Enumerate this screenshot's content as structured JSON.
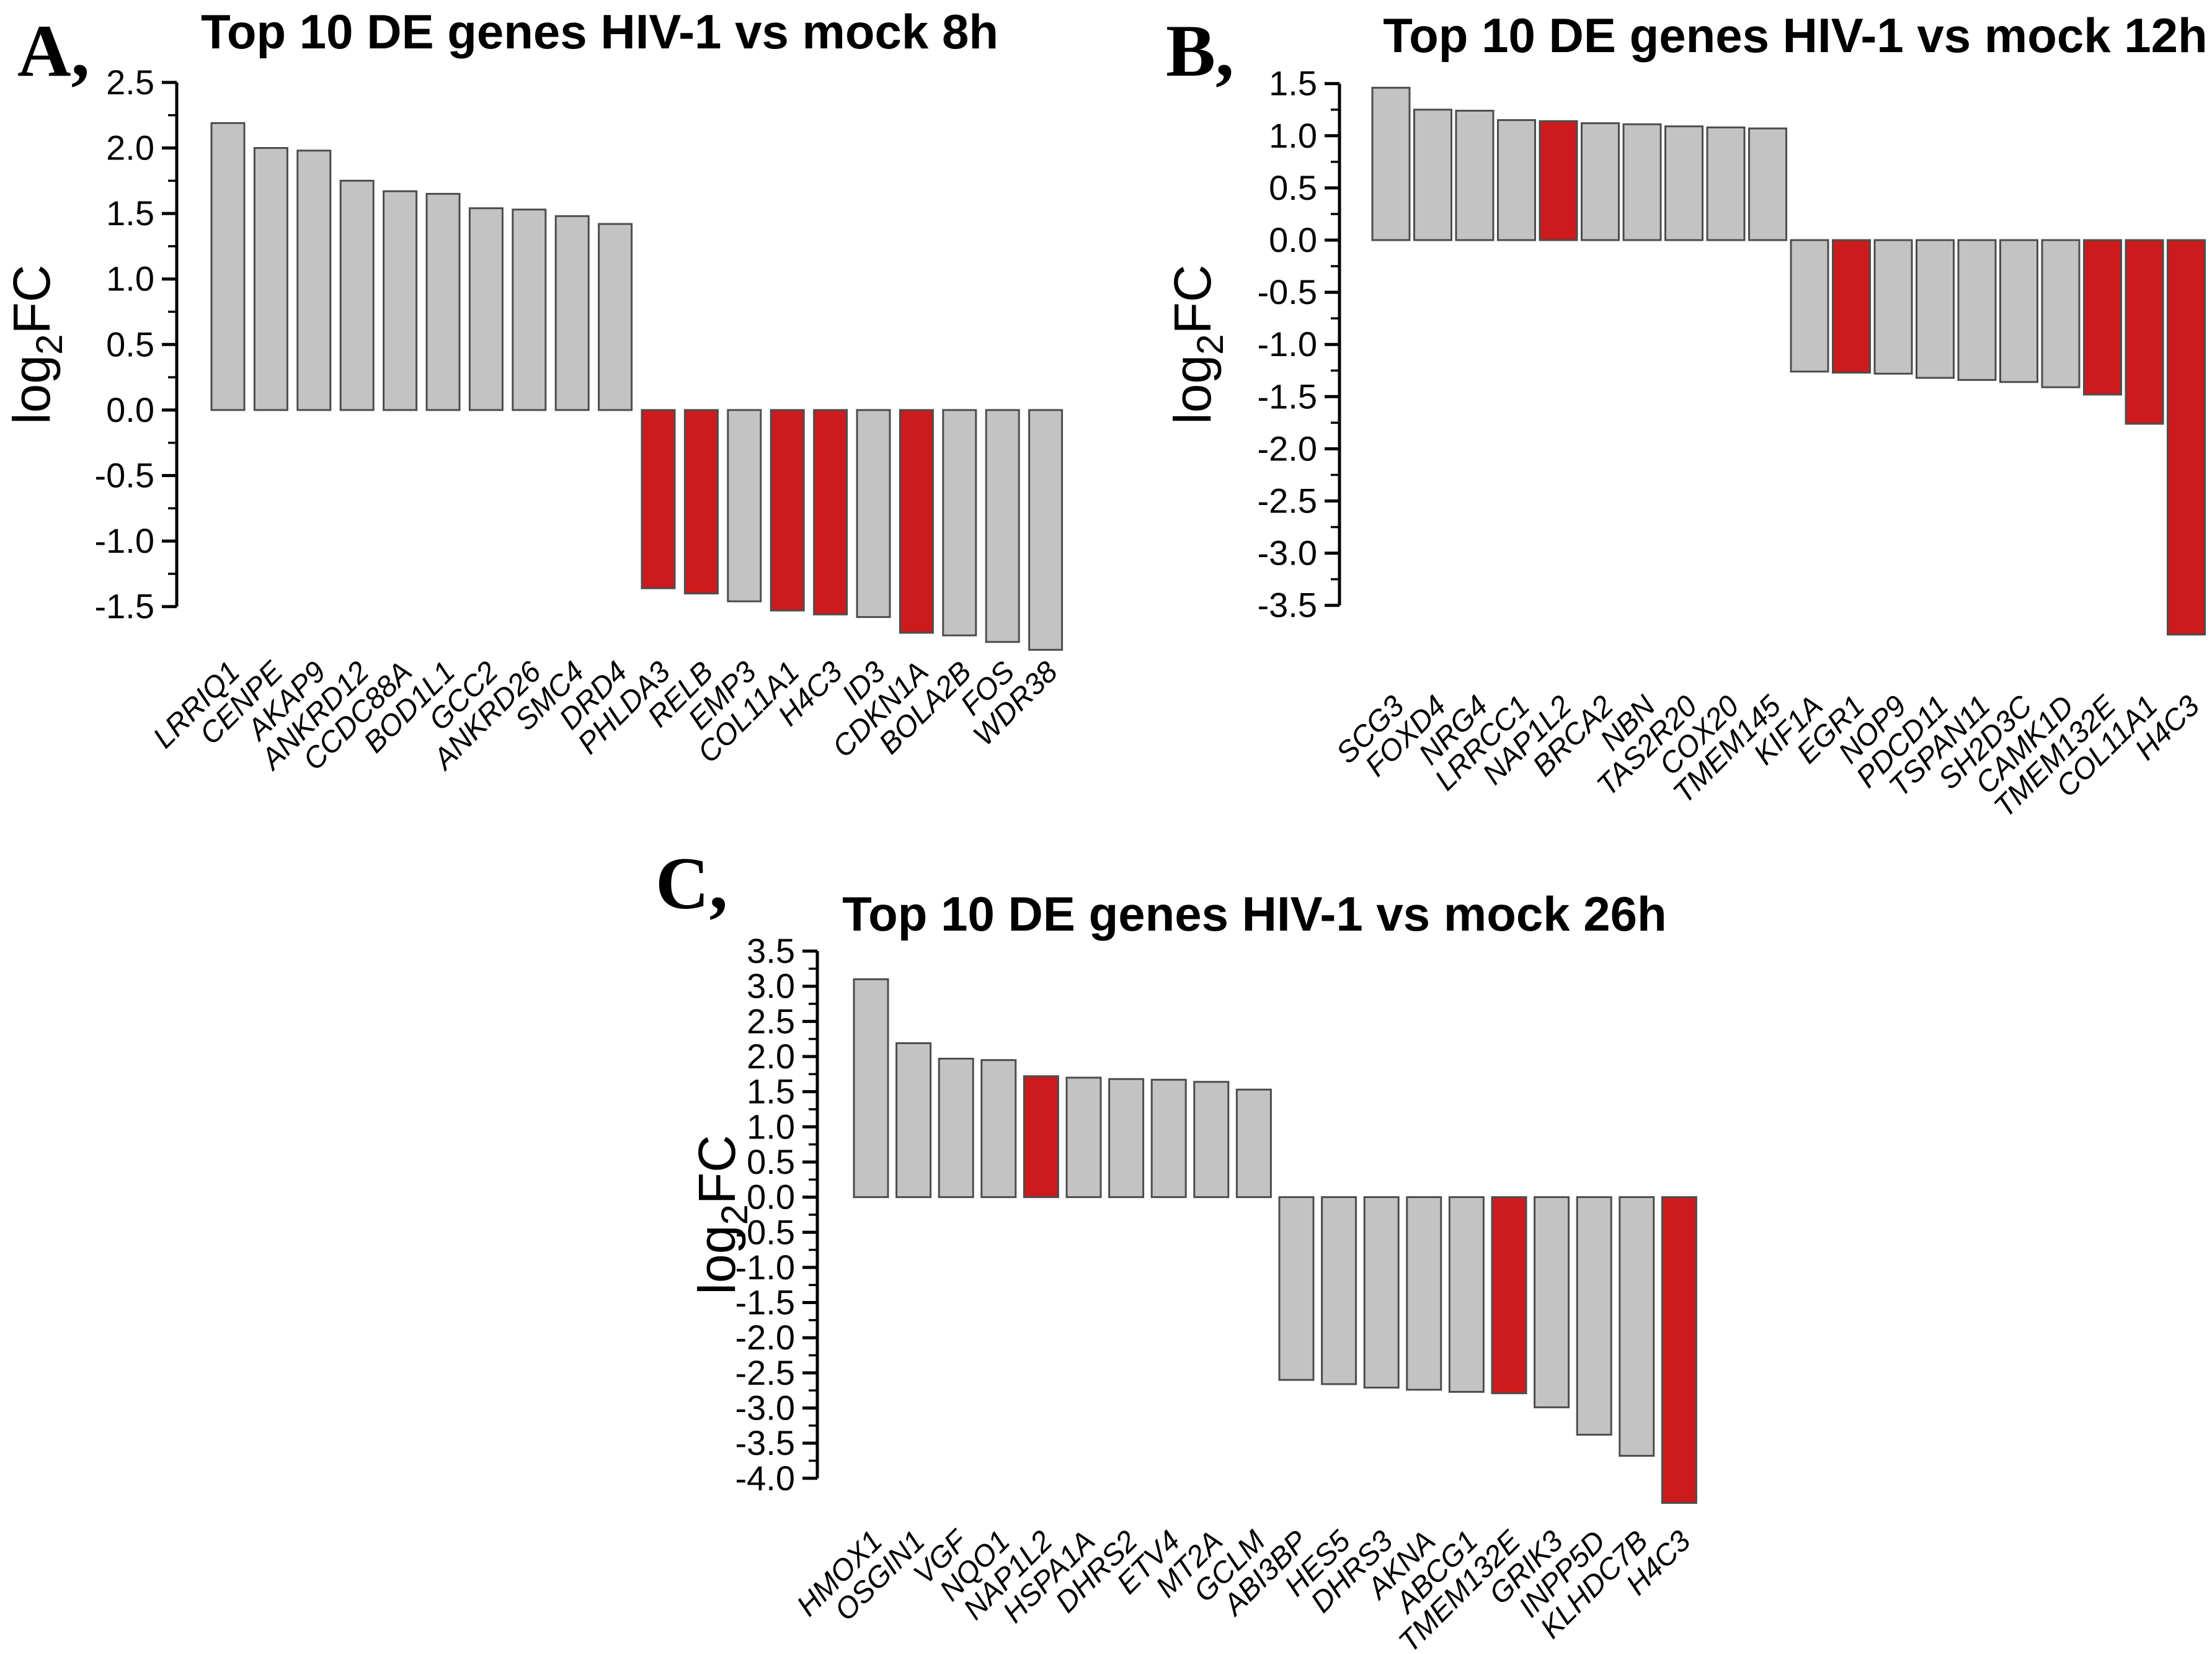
{
  "figure": {
    "background": "#ffffff",
    "bar_gray": "#c3c3c3",
    "bar_red": "#cd1a1c",
    "bar_outline": "#4d4d4d",
    "axis_color": "#000000",
    "text_color": "#000000"
  },
  "chart_data": [
    {
      "type": "bar",
      "panel_label": "A,",
      "title": "Top 10 DE genes HIV-1 vs mock 8h",
      "ylabel": "log2FC",
      "ylabel_parts": {
        "prefix": "log",
        "subscript": "2",
        "suffix": "FC"
      },
      "ylim": [
        -1.5,
        2.5
      ],
      "ytick_step": 0.5,
      "grid": false,
      "legend_position": "none",
      "categories": [
        "LRRIQ1",
        "CENPE",
        "AKAP9",
        "ANKRD12",
        "CCDC88A",
        "BOD1L1",
        "GCC2",
        "ANKRD26",
        "SMC4",
        "DRD4",
        "PHLDA3",
        "RELB",
        "EMP3",
        "COL11A1",
        "H4C3",
        "ID3",
        "CDKN1A",
        "BOLA2B",
        "FOS",
        "WDR38"
      ],
      "values": [
        2.19,
        2.0,
        1.98,
        1.75,
        1.67,
        1.65,
        1.54,
        1.53,
        1.48,
        1.42,
        -1.36,
        -1.4,
        -1.46,
        -1.53,
        -1.56,
        -1.58,
        -1.7,
        -1.72,
        -1.77,
        -1.83
      ],
      "colors": [
        "gray",
        "gray",
        "gray",
        "gray",
        "gray",
        "gray",
        "gray",
        "gray",
        "gray",
        "gray",
        "red",
        "red",
        "gray",
        "red",
        "red",
        "gray",
        "red",
        "gray",
        "gray",
        "gray"
      ]
    },
    {
      "type": "bar",
      "panel_label": "B,",
      "title": "Top 10 DE genes HIV-1 vs mock 12h",
      "ylabel": "log2FC",
      "ylabel_parts": {
        "prefix": "log",
        "subscript": "2",
        "suffix": "FC"
      },
      "ylim": [
        -3.5,
        1.5
      ],
      "ytick_step": 0.5,
      "grid": false,
      "legend_position": "none",
      "categories": [
        "SCG3",
        "FOXD4",
        "NRG4",
        "LRRCC1",
        "NAP1L2",
        "BRCA2",
        "NBN",
        "TAS2R20",
        "COX20",
        "TMEM145",
        "KIF1A",
        "EGR1",
        "NOP9",
        "PDCD11",
        "TSPAN11",
        "SH2D3C",
        "CAMK1D",
        "TMEM132E",
        "COL11A1",
        "H4C3"
      ],
      "values": [
        1.46,
        1.25,
        1.24,
        1.15,
        1.14,
        1.12,
        1.11,
        1.09,
        1.08,
        1.07,
        -1.26,
        -1.27,
        -1.28,
        -1.32,
        -1.34,
        -1.36,
        -1.41,
        -1.48,
        -1.76,
        -3.78
      ],
      "colors": [
        "gray",
        "gray",
        "gray",
        "gray",
        "red",
        "gray",
        "gray",
        "gray",
        "gray",
        "gray",
        "gray",
        "red",
        "gray",
        "gray",
        "gray",
        "gray",
        "gray",
        "red",
        "red",
        "red"
      ]
    },
    {
      "type": "bar",
      "panel_label": "C,",
      "title": "Top 10 DE genes HIV-1 vs mock 26h",
      "ylabel": "log2FC",
      "ylabel_parts": {
        "prefix": "log",
        "subscript": "2",
        "suffix": "FC"
      },
      "ylim": [
        -4.0,
        3.5
      ],
      "ytick_step": 0.5,
      "grid": false,
      "legend_position": "none",
      "categories": [
        "HMOX1",
        "OSGIN1",
        "VGF",
        "NQO1",
        "NAP1L2",
        "HSPA1A",
        "DHRS2",
        "ETV4",
        "MT2A",
        "GCLM",
        "ABI3BP",
        "HES5",
        "DHRS3",
        "AKNA",
        "ABCG1",
        "TMEM132E",
        "GRIK3",
        "INPP5D",
        "KLHDC7B",
        "H4C3"
      ],
      "values": [
        3.1,
        2.19,
        1.97,
        1.95,
        1.72,
        1.7,
        1.68,
        1.67,
        1.64,
        1.53,
        -2.6,
        -2.66,
        -2.71,
        -2.74,
        -2.77,
        -2.79,
        -2.99,
        -3.38,
        -3.68,
        -4.35
      ],
      "colors": [
        "gray",
        "gray",
        "gray",
        "gray",
        "red",
        "gray",
        "gray",
        "gray",
        "gray",
        "gray",
        "gray",
        "gray",
        "gray",
        "gray",
        "gray",
        "red",
        "gray",
        "gray",
        "gray",
        "red"
      ]
    }
  ]
}
